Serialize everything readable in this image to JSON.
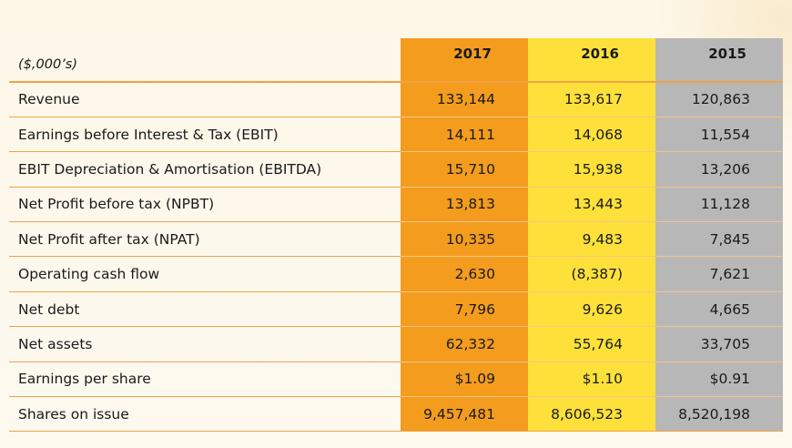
{
  "table": {
    "unit_label": "($,000’s)",
    "years": [
      "2017",
      "2016",
      "2015"
    ],
    "rows": [
      {
        "label": "Revenue",
        "values": [
          "133,144",
          "133,617",
          "120,863"
        ]
      },
      {
        "label": "Earnings before Interest & Tax (EBIT)",
        "values": [
          "14,111",
          "14,068",
          "11,554"
        ]
      },
      {
        "label": "EBIT Depreciation & Amortisation (EBITDA)",
        "values": [
          "15,710",
          "15,938",
          "13,206"
        ]
      },
      {
        "label": "Net Profit before tax (NPBT)",
        "values": [
          "13,813",
          "13,443",
          "11,128"
        ]
      },
      {
        "label": "Net Profit after tax (NPAT)",
        "values": [
          "10,335",
          "9,483",
          "7,845"
        ]
      },
      {
        "label": "Operating cash flow",
        "values": [
          "2,630",
          "(8,387)",
          "7,621"
        ]
      },
      {
        "label": "Net debt",
        "values": [
          "7,796",
          "9,626",
          "4,665"
        ]
      },
      {
        "label": "Net assets",
        "values": [
          "62,332",
          "55,764",
          "33,705"
        ]
      },
      {
        "label": "Earnings per share",
        "values": [
          "$1.09",
          "$1.10",
          "$0.91"
        ]
      },
      {
        "label": "Shares on issue",
        "values": [
          "9,457,481",
          "8,606,523",
          "8,520,198"
        ]
      }
    ]
  },
  "colors": {
    "col_2017": "#f39c1e",
    "col_2016": "#fde13a",
    "col_2015": "#b7b7b7",
    "rule": "#f0a245"
  }
}
